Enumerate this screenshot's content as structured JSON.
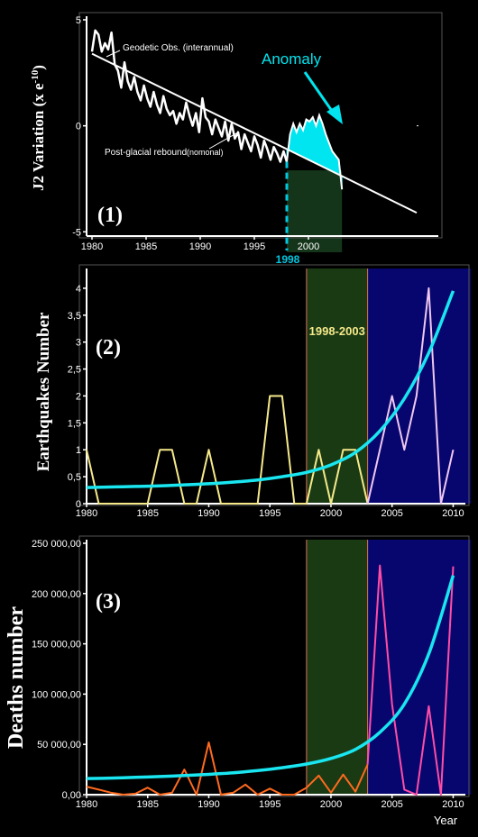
{
  "chart_data": [
    {
      "type": "line",
      "panel_label": "(1)",
      "ylabel": "J2 Variation (x e",
      "ylabel_exp": "-10",
      "ylabel_close": ")",
      "xlim": [
        1979.5,
        2012
      ],
      "ylim": [
        -5.2,
        5
      ],
      "yticks": [
        "5",
        "0",
        "-5"
      ],
      "xticks": [
        "1980",
        "1985",
        "1990",
        "1995",
        "2000"
      ],
      "highlight_tick": "1998",
      "annotations": {
        "observed": "Geodetic Obs. (interannual)",
        "trend": "Post-glacial rebound",
        "trend_note": "(nomonal)",
        "anomaly": "Anomaly"
      },
      "colors": {
        "observed": "#ffffff",
        "trend": "#ffffff",
        "anomaly": "#00e5ef",
        "marker": "#00c8e0"
      },
      "series": [
        {
          "x": [
            1980,
            1980.3,
            1980.6,
            1980.9,
            1981.2,
            1981.5,
            1981.8,
            1982.1,
            1982.4,
            1982.7,
            1983,
            1983.3,
            1983.6,
            1983.9,
            1984.2,
            1984.5,
            1984.8,
            1985.1,
            1985.4,
            1985.7,
            1986,
            1986.3,
            1986.6,
            1986.9,
            1987.2,
            1987.5,
            1987.8,
            1988.1,
            1988.4,
            1988.7,
            1989,
            1989.3,
            1989.6,
            1989.9,
            1990.2,
            1990.5,
            1990.8,
            1991.1,
            1991.4,
            1991.7,
            1992,
            1992.3,
            1992.6,
            1992.9,
            1993.2,
            1993.5,
            1993.8,
            1994.1,
            1994.4,
            1994.7,
            1995,
            1995.3,
            1995.6,
            1995.9,
            1996.2,
            1996.5,
            1996.8,
            1997.1,
            1997.4,
            1997.7,
            1998
          ],
          "y": [
            3.5,
            4.5,
            4.3,
            3.5,
            3.9,
            3.6,
            4.4,
            2.9,
            2.6,
            1.8,
            3.0,
            2.1,
            1.7,
            2.3,
            1.6,
            1.2,
            1.9,
            1.3,
            0.9,
            1.6,
            1.0,
            0.6,
            1.4,
            0.8,
            0.5,
            0.7,
            0.1,
            0.6,
            0.3,
            1.1,
            0.5,
            0.0,
            0.6,
            -0.3,
            1.3,
            0.4,
            0.2,
            -0.4,
            0.3,
            -0.1,
            -0.5,
            0.2,
            -0.7,
            0.1,
            -0.6,
            -0.3,
            -1.1,
            -0.4,
            -0.8,
            -1.2,
            -0.5,
            -0.9,
            -1.5,
            -0.7,
            -1.1,
            -1.6,
            -1.0,
            -1.3,
            -1.7,
            -1.2,
            -1.7
          ]
        },
        {
          "x": [
            1980,
            2010
          ],
          "y": [
            3.4,
            -4.1
          ]
        },
        {
          "x": [
            1998,
            1998.3,
            1998.6,
            1998.9,
            1999.2,
            1999.5,
            1999.8,
            2000.1,
            2000.4,
            2000.7,
            2001,
            2001.3,
            2001.6,
            2001.9,
            2002.2,
            2002.5,
            2002.8,
            2003.1
          ],
          "y": [
            -1.7,
            -0.4,
            0.1,
            -0.3,
            0.1,
            -0.2,
            0.3,
            0.2,
            0.4,
            0.0,
            0.5,
            0.1,
            -0.4,
            -0.8,
            -1.2,
            -1.4,
            -1.6,
            -3.0
          ]
        }
      ]
    },
    {
      "type": "line",
      "panel_label": "(2)",
      "ylabel": "Earthquakes  Number",
      "xlim": [
        1980,
        2011
      ],
      "ylim": [
        0,
        4.3
      ],
      "yticks": [
        "0",
        "0,5",
        "1",
        "1,5",
        "2",
        "2,5",
        "3",
        "3,5",
        "4"
      ],
      "xticks": [
        "1980",
        "1985",
        "1990",
        "1995",
        "2000",
        "2005",
        "2010"
      ],
      "period_label": "1998-2003",
      "colors": {
        "before": "#f5e98a",
        "after": "#f0c8f0",
        "trend": "#19e6f0",
        "period_fill": "#1a3a14",
        "recent_fill": "#06066e",
        "divider": "#e07058"
      },
      "series": [
        {
          "x": [
            1980,
            1981,
            1982,
            1983,
            1984,
            1985,
            1986,
            1987,
            1988,
            1989,
            1990,
            1991,
            1992,
            1993,
            1994,
            1995,
            1996,
            1997,
            1998,
            1999,
            2000,
            2001,
            2002,
            2003
          ],
          "y": [
            1,
            0,
            0,
            0,
            0,
            0,
            1,
            1,
            0,
            0,
            1,
            0,
            0,
            0,
            0,
            2,
            2,
            0,
            0,
            1,
            0,
            1,
            1,
            0
          ]
        },
        {
          "x": [
            2003,
            2004,
            2005,
            2006,
            2007,
            2008,
            2009,
            2010
          ],
          "y": [
            0,
            1,
            2,
            1,
            2,
            4,
            0,
            1
          ]
        },
        {
          "x": [
            1980,
            1982,
            1984,
            1986,
            1988,
            1990,
            1992,
            1994,
            1996,
            1998,
            2000,
            2002,
            2004,
            2006,
            2008,
            2010
          ],
          "y": [
            0.3,
            0.31,
            0.32,
            0.33,
            0.35,
            0.37,
            0.4,
            0.44,
            0.5,
            0.58,
            0.72,
            0.95,
            1.35,
            1.95,
            2.8,
            3.95
          ]
        }
      ]
    },
    {
      "type": "line",
      "panel_label": "(3)",
      "ylabel": "Deaths  number",
      "xlabel": "Year",
      "xlim": [
        1980,
        2011
      ],
      "ylim": [
        0,
        250000
      ],
      "yticks": [
        "0,00",
        "50 000,00",
        "100 000,00",
        "150 000,00",
        "200 000,00",
        "250 000,00"
      ],
      "xticks": [
        "1980",
        "1985",
        "1990",
        "1995",
        "2000",
        "2005",
        "2010"
      ],
      "colors": {
        "before": "#ff6a1e",
        "after": "#ff4da6",
        "trend": "#19e6f0",
        "period_fill": "#1a3a14",
        "recent_fill": "#06066e",
        "divider": "#e07058"
      },
      "series": [
        {
          "x": [
            1980,
            1981,
            1982,
            1983,
            1984,
            1985,
            1986,
            1987,
            1988,
            1989,
            1990,
            1991,
            1992,
            1993,
            1994,
            1995,
            1996,
            1997,
            1998,
            1999,
            2000,
            2001,
            2002,
            2003
          ],
          "y": [
            8000,
            5000,
            2000,
            0,
            1000,
            7000,
            0,
            2000,
            25000,
            0,
            52000,
            0,
            2000,
            10000,
            0,
            6000,
            0,
            0,
            7000,
            19000,
            2000,
            20000,
            3000,
            30000
          ]
        },
        {
          "x": [
            2003,
            2004,
            2005,
            2006,
            2007,
            2008,
            2009,
            2010
          ],
          "y": [
            30000,
            228000,
            90000,
            5000,
            0,
            88000,
            0,
            227000
          ]
        },
        {
          "x": [
            1980,
            1982,
            1984,
            1986,
            1988,
            1990,
            1992,
            1994,
            1996,
            1998,
            2000,
            2002,
            2004,
            2006,
            2008,
            2010
          ],
          "y": [
            16000,
            16500,
            17200,
            18000,
            19000,
            20200,
            21800,
            24000,
            26800,
            30500,
            36000,
            45000,
            62000,
            90000,
            140000,
            218000
          ]
        }
      ]
    }
  ]
}
